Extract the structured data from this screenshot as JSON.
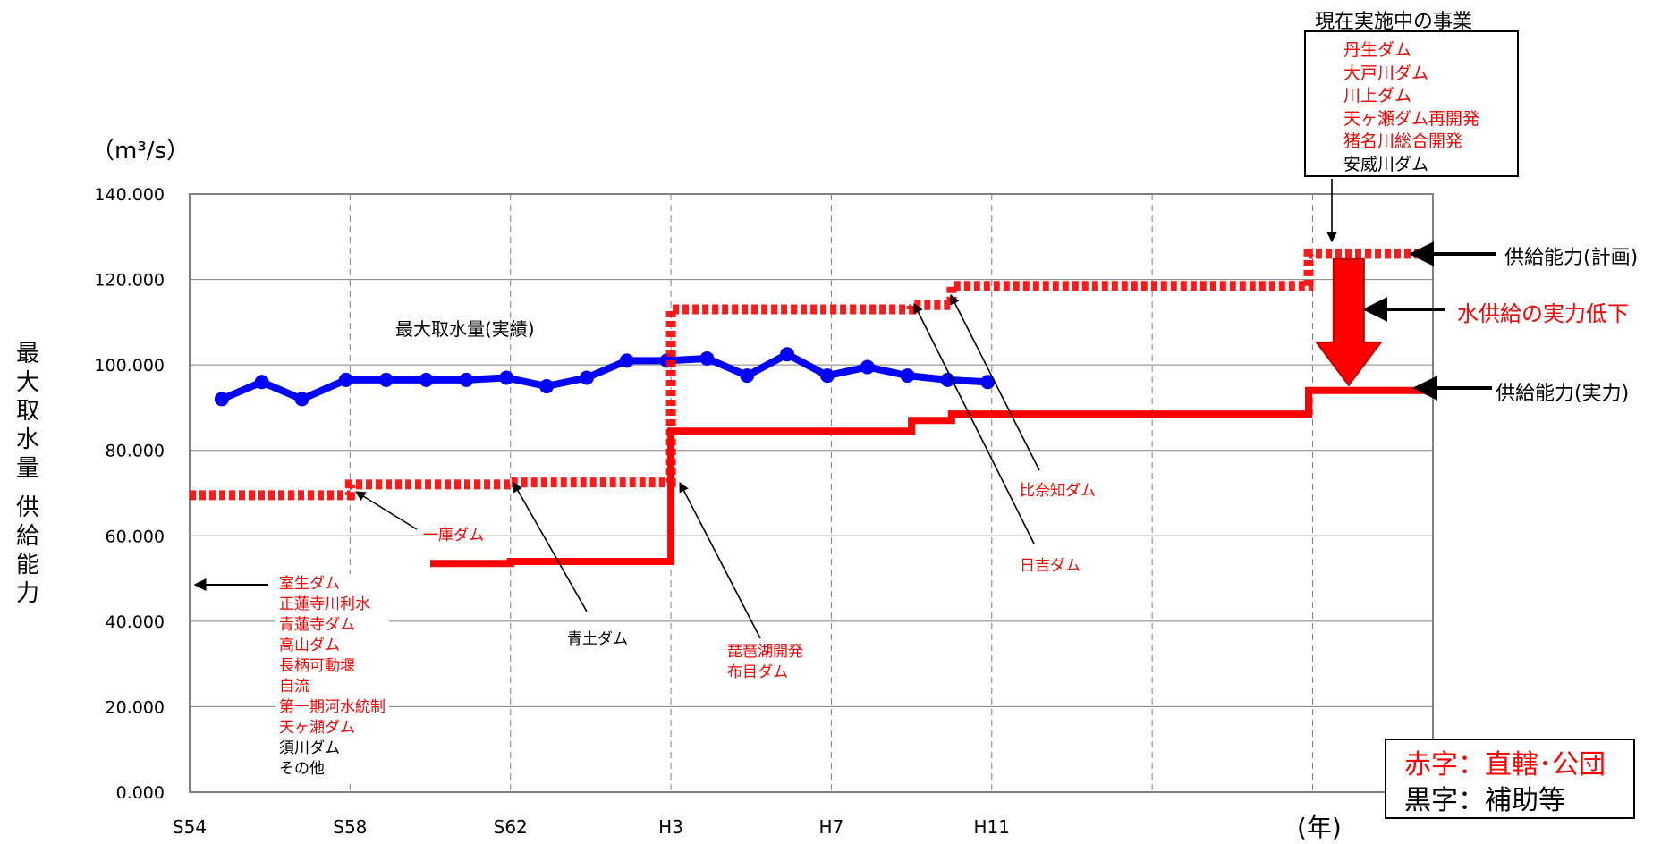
{
  "chart_data": {
    "type": "line",
    "unit_label": "（m³/s）",
    "ylabel_chars": [
      "最",
      "大",
      "取",
      "水",
      "量",
      "",
      "供",
      "給",
      "能",
      "力"
    ],
    "xaxis_unit": "(年)",
    "ylim": [
      0,
      140
    ],
    "y_ticks": [
      "0.000",
      "20.000",
      "40.000",
      "60.000",
      "80.000",
      "100.000",
      "120.000",
      "140.000"
    ],
    "x_range": [
      54,
      85
    ],
    "x_ticks": [
      {
        "x": 54,
        "label": "S54"
      },
      {
        "x": 58,
        "label": "S58"
      },
      {
        "x": 62,
        "label": "S62"
      },
      {
        "x": 66,
        "label": "H3"
      },
      {
        "x": 70,
        "label": "H7"
      },
      {
        "x": 74,
        "label": "H11"
      }
    ],
    "x_gridlines": [
      58,
      62,
      66,
      70,
      74,
      78,
      82
    ],
    "series": [
      {
        "name": "最大取水量(実績)",
        "style": "line-markers",
        "color": "#0000ff",
        "points": [
          [
            54.8,
            92.0
          ],
          [
            55.8,
            96.0
          ],
          [
            56.8,
            92.0
          ],
          [
            57.9,
            96.5
          ],
          [
            58.9,
            96.5
          ],
          [
            59.9,
            96.5
          ],
          [
            60.9,
            96.5
          ],
          [
            61.9,
            97.0
          ],
          [
            62.9,
            95.0
          ],
          [
            63.9,
            97.0
          ],
          [
            64.9,
            101.0
          ],
          [
            65.9,
            101.0
          ],
          [
            66.9,
            101.5
          ],
          [
            67.9,
            97.5
          ],
          [
            68.9,
            102.5
          ],
          [
            69.9,
            97.5
          ],
          [
            70.9,
            99.5
          ],
          [
            71.9,
            97.5
          ],
          [
            72.9,
            96.5
          ],
          [
            73.9,
            96.0
          ]
        ]
      },
      {
        "name": "供給能力(実力)",
        "style": "step-solid",
        "color": "#ff0000",
        "points": [
          [
            60,
            53.5
          ],
          [
            62,
            53.5
          ],
          [
            62,
            54
          ],
          [
            66,
            54
          ],
          [
            66,
            84.5
          ],
          [
            72,
            84.5
          ],
          [
            72,
            87
          ],
          [
            73,
            87
          ],
          [
            73,
            88.5
          ],
          [
            81.9,
            88.5
          ],
          [
            81.9,
            94
          ],
          [
            85,
            94
          ]
        ]
      },
      {
        "name": "供給能力(計画)",
        "style": "step-dashed",
        "color": "#ff0000",
        "points": [
          [
            54,
            69.5
          ],
          [
            58,
            69.5
          ],
          [
            58,
            72
          ],
          [
            62,
            72
          ],
          [
            62,
            72.5
          ],
          [
            66,
            72.5
          ],
          [
            66,
            113
          ],
          [
            72,
            113
          ],
          [
            72,
            114
          ],
          [
            73,
            114
          ],
          [
            73,
            118.5
          ],
          [
            81.9,
            118.5
          ],
          [
            81.9,
            126
          ],
          [
            85,
            126
          ]
        ]
      }
    ],
    "annotations": {
      "actual_series_label": "最大取水量(実績)",
      "plan_label": "供給能力(計画)",
      "actual_label": "供給能力(実力)",
      "decline_label": "水供給の実力低下",
      "ichiko": "一庫ダム",
      "aozuchi": "青土ダム",
      "biwako": [
        "琵琶湖開発",
        "布目ダム"
      ],
      "hinachi": "比奈知ダム",
      "hiyoshi": "日吉ダム",
      "early_projects": [
        {
          "text": "室生ダム",
          "color": "red"
        },
        {
          "text": "正蓮寺川利水",
          "color": "red"
        },
        {
          "text": "青蓮寺ダム",
          "color": "red"
        },
        {
          "text": "高山ダム",
          "color": "red"
        },
        {
          "text": "長柄可動堰",
          "color": "red"
        },
        {
          "text": "自流",
          "color": "red"
        },
        {
          "text": "第一期河水統制",
          "color": "red"
        },
        {
          "text": "天ヶ瀬ダム",
          "color": "red"
        },
        {
          "text": "須川ダム",
          "color": "black"
        },
        {
          "text": "その他",
          "color": "black"
        }
      ],
      "current_title": "現在実施中の事業",
      "current_projects": [
        {
          "text": "丹生ダム",
          "color": "red"
        },
        {
          "text": "大戸川ダム",
          "color": "red"
        },
        {
          "text": "川上ダム",
          "color": "red"
        },
        {
          "text": "天ヶ瀬ダム再開発",
          "color": "red"
        },
        {
          "text": "猪名川総合開発",
          "color": "red"
        },
        {
          "text": "安威川ダム",
          "color": "black"
        }
      ],
      "legend_red": "赤字：直轄･公団",
      "legend_black": "黒字：補助等"
    },
    "colors": {
      "actual_intake": "#0000ff",
      "supply": "#ff0000",
      "axis": "#808080",
      "grid": "#808080"
    }
  }
}
